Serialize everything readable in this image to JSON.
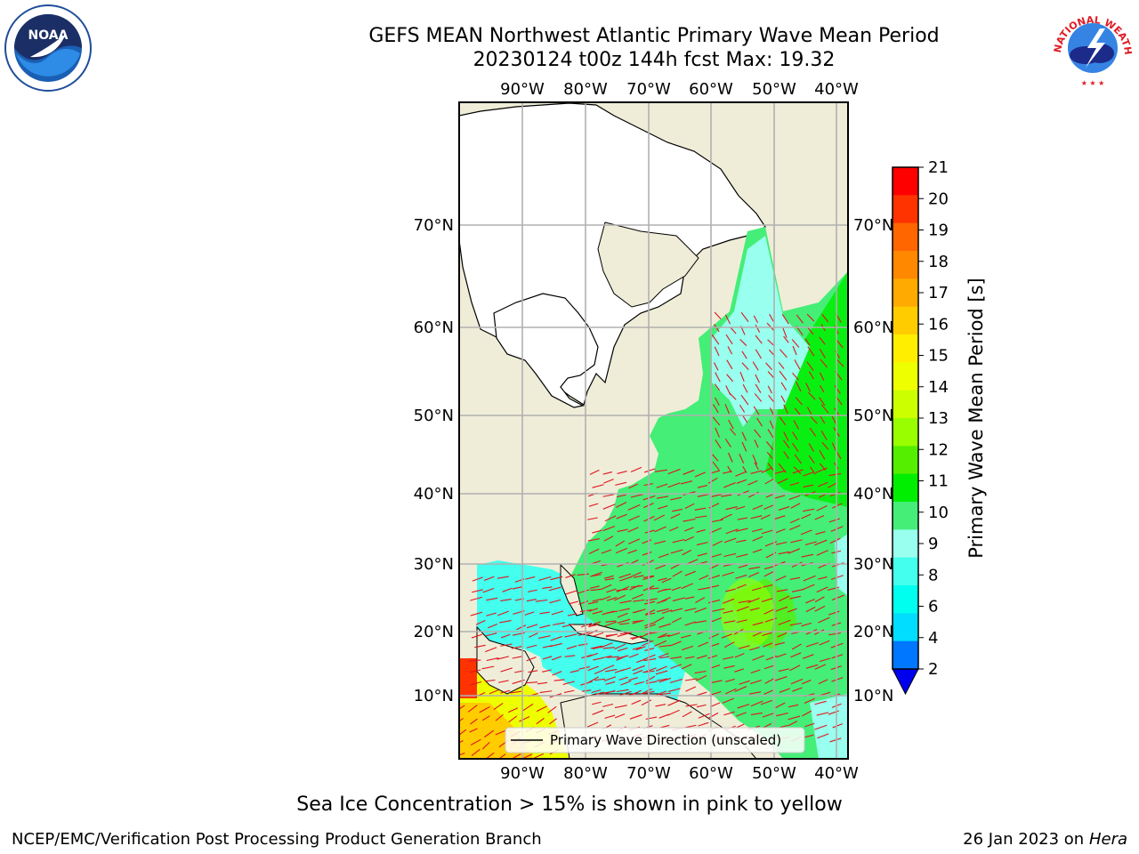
{
  "header": {
    "title_line1": "GEFS MEAN Northwest Atlantic Primary Wave Mean Period",
    "title_line2": "20230124 t00z 144h fcst   Max: 19.32"
  },
  "map": {
    "lon_labels": [
      "90°W",
      "80°W",
      "70°W",
      "60°W",
      "50°W",
      "40°W"
    ],
    "lat_labels": [
      "70°N",
      "60°N",
      "50°N",
      "40°N",
      "30°N",
      "20°N",
      "10°N"
    ],
    "legend_text": "Primary Wave Direction (unscaled)",
    "colors": {
      "land": "#efedd8",
      "ice_zone": "#ffffff",
      "arrow": "#e0141e",
      "grid": "#b0b0b0"
    }
  },
  "colorbar": {
    "label": "Primary Wave Mean Period [s]",
    "ticks": [
      "21",
      "20",
      "19",
      "18",
      "17",
      "16",
      "15",
      "14",
      "13",
      "12",
      "11",
      "10",
      "9",
      "8",
      "6",
      "4",
      "2"
    ],
    "colors": [
      "#ff0000",
      "#ff3300",
      "#ff6600",
      "#ff8800",
      "#ffaa00",
      "#ffcc00",
      "#ffee00",
      "#eeff00",
      "#ccff00",
      "#99ff00",
      "#55ee00",
      "#00ee00",
      "#44ee77",
      "#99ffee",
      "#44ffee",
      "#00ffee",
      "#00ddff",
      "#0077ff"
    ],
    "extend_color": "#0000ee"
  },
  "note": "Sea Ice Concentration > 15% is shown in pink to yellow",
  "footer": {
    "left": "NCEP/EMC/Verification Post Processing Product Generation Branch",
    "date": "26 Jan 2023 on",
    "machine": "Hera"
  },
  "logos": {
    "noaa_text": "NOAA",
    "nws_text": "NATIONAL WEATHER SERVICE"
  }
}
